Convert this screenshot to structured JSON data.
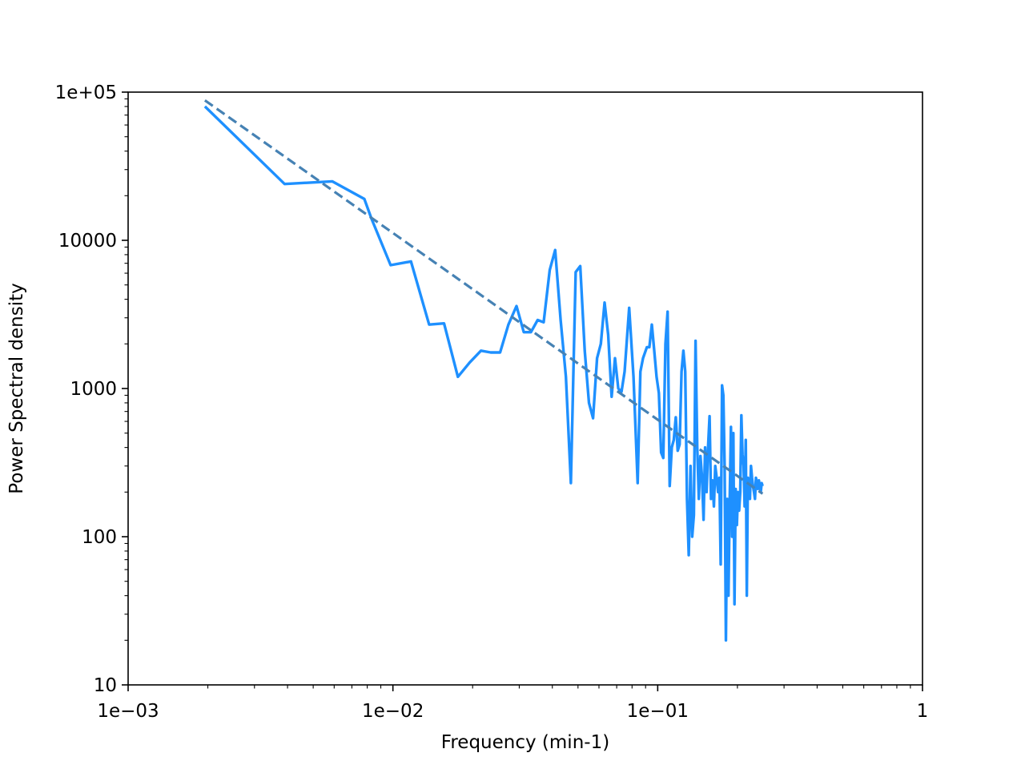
{
  "chart_data": {
    "type": "line",
    "title": "",
    "xlabel": "Frequency (min-1)",
    "ylabel": "Power Spectral density",
    "xscale": "log",
    "yscale": "log",
    "xlim": [
      0.001,
      1
    ],
    "ylim": [
      10,
      100000
    ],
    "grid": false,
    "legend": "none",
    "x_ticks": [
      {
        "value": 0.001,
        "label": "1e−03"
      },
      {
        "value": 0.01,
        "label": "1e−02"
      },
      {
        "value": 0.1,
        "label": "1e−01"
      },
      {
        "value": 1,
        "label": "1"
      }
    ],
    "y_ticks": [
      {
        "value": 10,
        "label": "10"
      },
      {
        "value": 100,
        "label": "100"
      },
      {
        "value": 1000,
        "label": "1000"
      },
      {
        "value": 10000,
        "label": "10000"
      },
      {
        "value": 100000,
        "label": "1e+05"
      }
    ],
    "series": [
      {
        "style": "solid",
        "color": "#1e90ff",
        "x": [
          0.00195,
          0.0039,
          0.0059,
          0.0078,
          0.0083,
          0.0098,
          0.0117,
          0.0137,
          0.0156,
          0.0176,
          0.0195,
          0.0215,
          0.0234,
          0.0254,
          0.0273,
          0.0293,
          0.0312,
          0.0332,
          0.0352,
          0.0371,
          0.0391,
          0.041,
          0.043,
          0.045,
          0.047,
          0.049,
          0.051,
          0.053,
          0.055,
          0.057,
          0.059,
          0.061,
          0.063,
          0.065,
          0.067,
          0.069,
          0.071,
          0.073,
          0.075,
          0.078,
          0.081,
          0.084,
          0.086,
          0.088,
          0.091,
          0.093,
          0.095,
          0.097,
          0.099,
          0.101,
          0.103,
          0.105,
          0.107,
          0.109,
          0.111,
          0.113,
          0.115,
          0.117,
          0.119,
          0.121,
          0.123,
          0.125,
          0.127,
          0.129,
          0.131,
          0.133,
          0.135,
          0.137,
          0.139,
          0.141,
          0.143,
          0.145,
          0.147,
          0.149,
          0.151,
          0.153,
          0.155,
          0.157,
          0.159,
          0.161,
          0.163,
          0.165,
          0.167,
          0.169,
          0.171,
          0.173,
          0.175,
          0.177,
          0.179,
          0.181,
          0.183,
          0.185,
          0.187,
          0.189,
          0.191,
          0.193,
          0.195,
          0.197,
          0.199,
          0.201,
          0.203,
          0.205,
          0.207,
          0.209,
          0.211,
          0.213,
          0.215,
          0.217,
          0.219,
          0.221,
          0.223,
          0.225,
          0.227,
          0.229,
          0.231,
          0.233,
          0.235,
          0.237,
          0.239,
          0.241,
          0.243,
          0.245,
          0.247,
          0.249
        ],
        "y": [
          80000,
          24000,
          25000,
          19000,
          14000,
          6800,
          7200,
          2700,
          2750,
          1200,
          1500,
          1800,
          1750,
          1750,
          2700,
          3600,
          2400,
          2400,
          2900,
          2800,
          6300,
          8600,
          2900,
          1200,
          230,
          6100,
          6700,
          1800,
          800,
          630,
          1600,
          2000,
          3800,
          2300,
          880,
          1600,
          1000,
          950,
          1300,
          3500,
          1200,
          230,
          1300,
          1600,
          1900,
          1900,
          2700,
          1800,
          1200,
          930,
          370,
          340,
          2000,
          3300,
          220,
          400,
          450,
          640,
          380,
          420,
          1300,
          1800,
          1300,
          180,
          75,
          300,
          100,
          140,
          2100,
          400,
          180,
          350,
          250,
          130,
          400,
          200,
          410,
          650,
          180,
          240,
          160,
          300,
          250,
          200,
          250,
          65,
          1050,
          900,
          300,
          20,
          180,
          40,
          170,
          550,
          100,
          500,
          35,
          210,
          120,
          200,
          150,
          200,
          660,
          360,
          300,
          160,
          450,
          40,
          250,
          220,
          180,
          300,
          250,
          220,
          200,
          180,
          250,
          230,
          210,
          240,
          220,
          200,
          230,
          220
        ]
      },
      {
        "style": "dashed",
        "color": "#4682b4",
        "x": [
          0.00195,
          0.249
        ],
        "y": [
          88000,
          195
        ]
      }
    ]
  }
}
